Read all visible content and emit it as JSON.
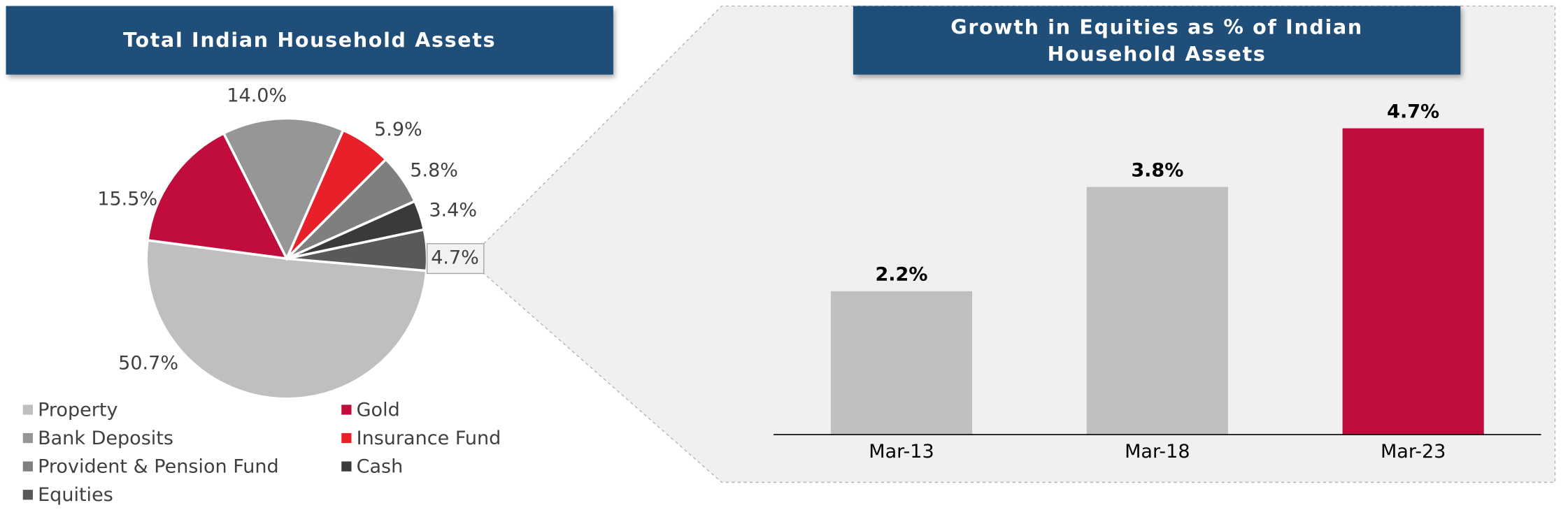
{
  "chart_data": [
    {
      "type": "pie",
      "title": "Total Indian Household Assets",
      "categories": [
        "Property",
        "Gold",
        "Bank Deposits",
        "Insurance Fund",
        "Provident & Pension Fund",
        "Cash",
        "Equities"
      ],
      "values": [
        50.7,
        15.5,
        14.0,
        5.9,
        5.8,
        3.4,
        4.7
      ],
      "value_labels": [
        "50.7%",
        "15.5%",
        "14.0%",
        "5.9%",
        "5.8%",
        "3.4%",
        "4.7%"
      ],
      "colors": [
        "#bfbfbf",
        "#c00d3b",
        "#969696",
        "#e8202a",
        "#7f7f7f",
        "#3a3a3a",
        "#595959"
      ]
    },
    {
      "type": "bar",
      "title": "Growth in Equities as % of Indian Household Assets",
      "categories": [
        "Mar-13",
        "Mar-18",
        "Mar-23"
      ],
      "values": [
        2.2,
        3.8,
        4.7
      ],
      "value_labels": [
        "2.2%",
        "3.8%",
        "4.7%"
      ],
      "colors": [
        "#bfbfbf",
        "#bfbfbf",
        "#c00d3b"
      ]
    }
  ]
}
